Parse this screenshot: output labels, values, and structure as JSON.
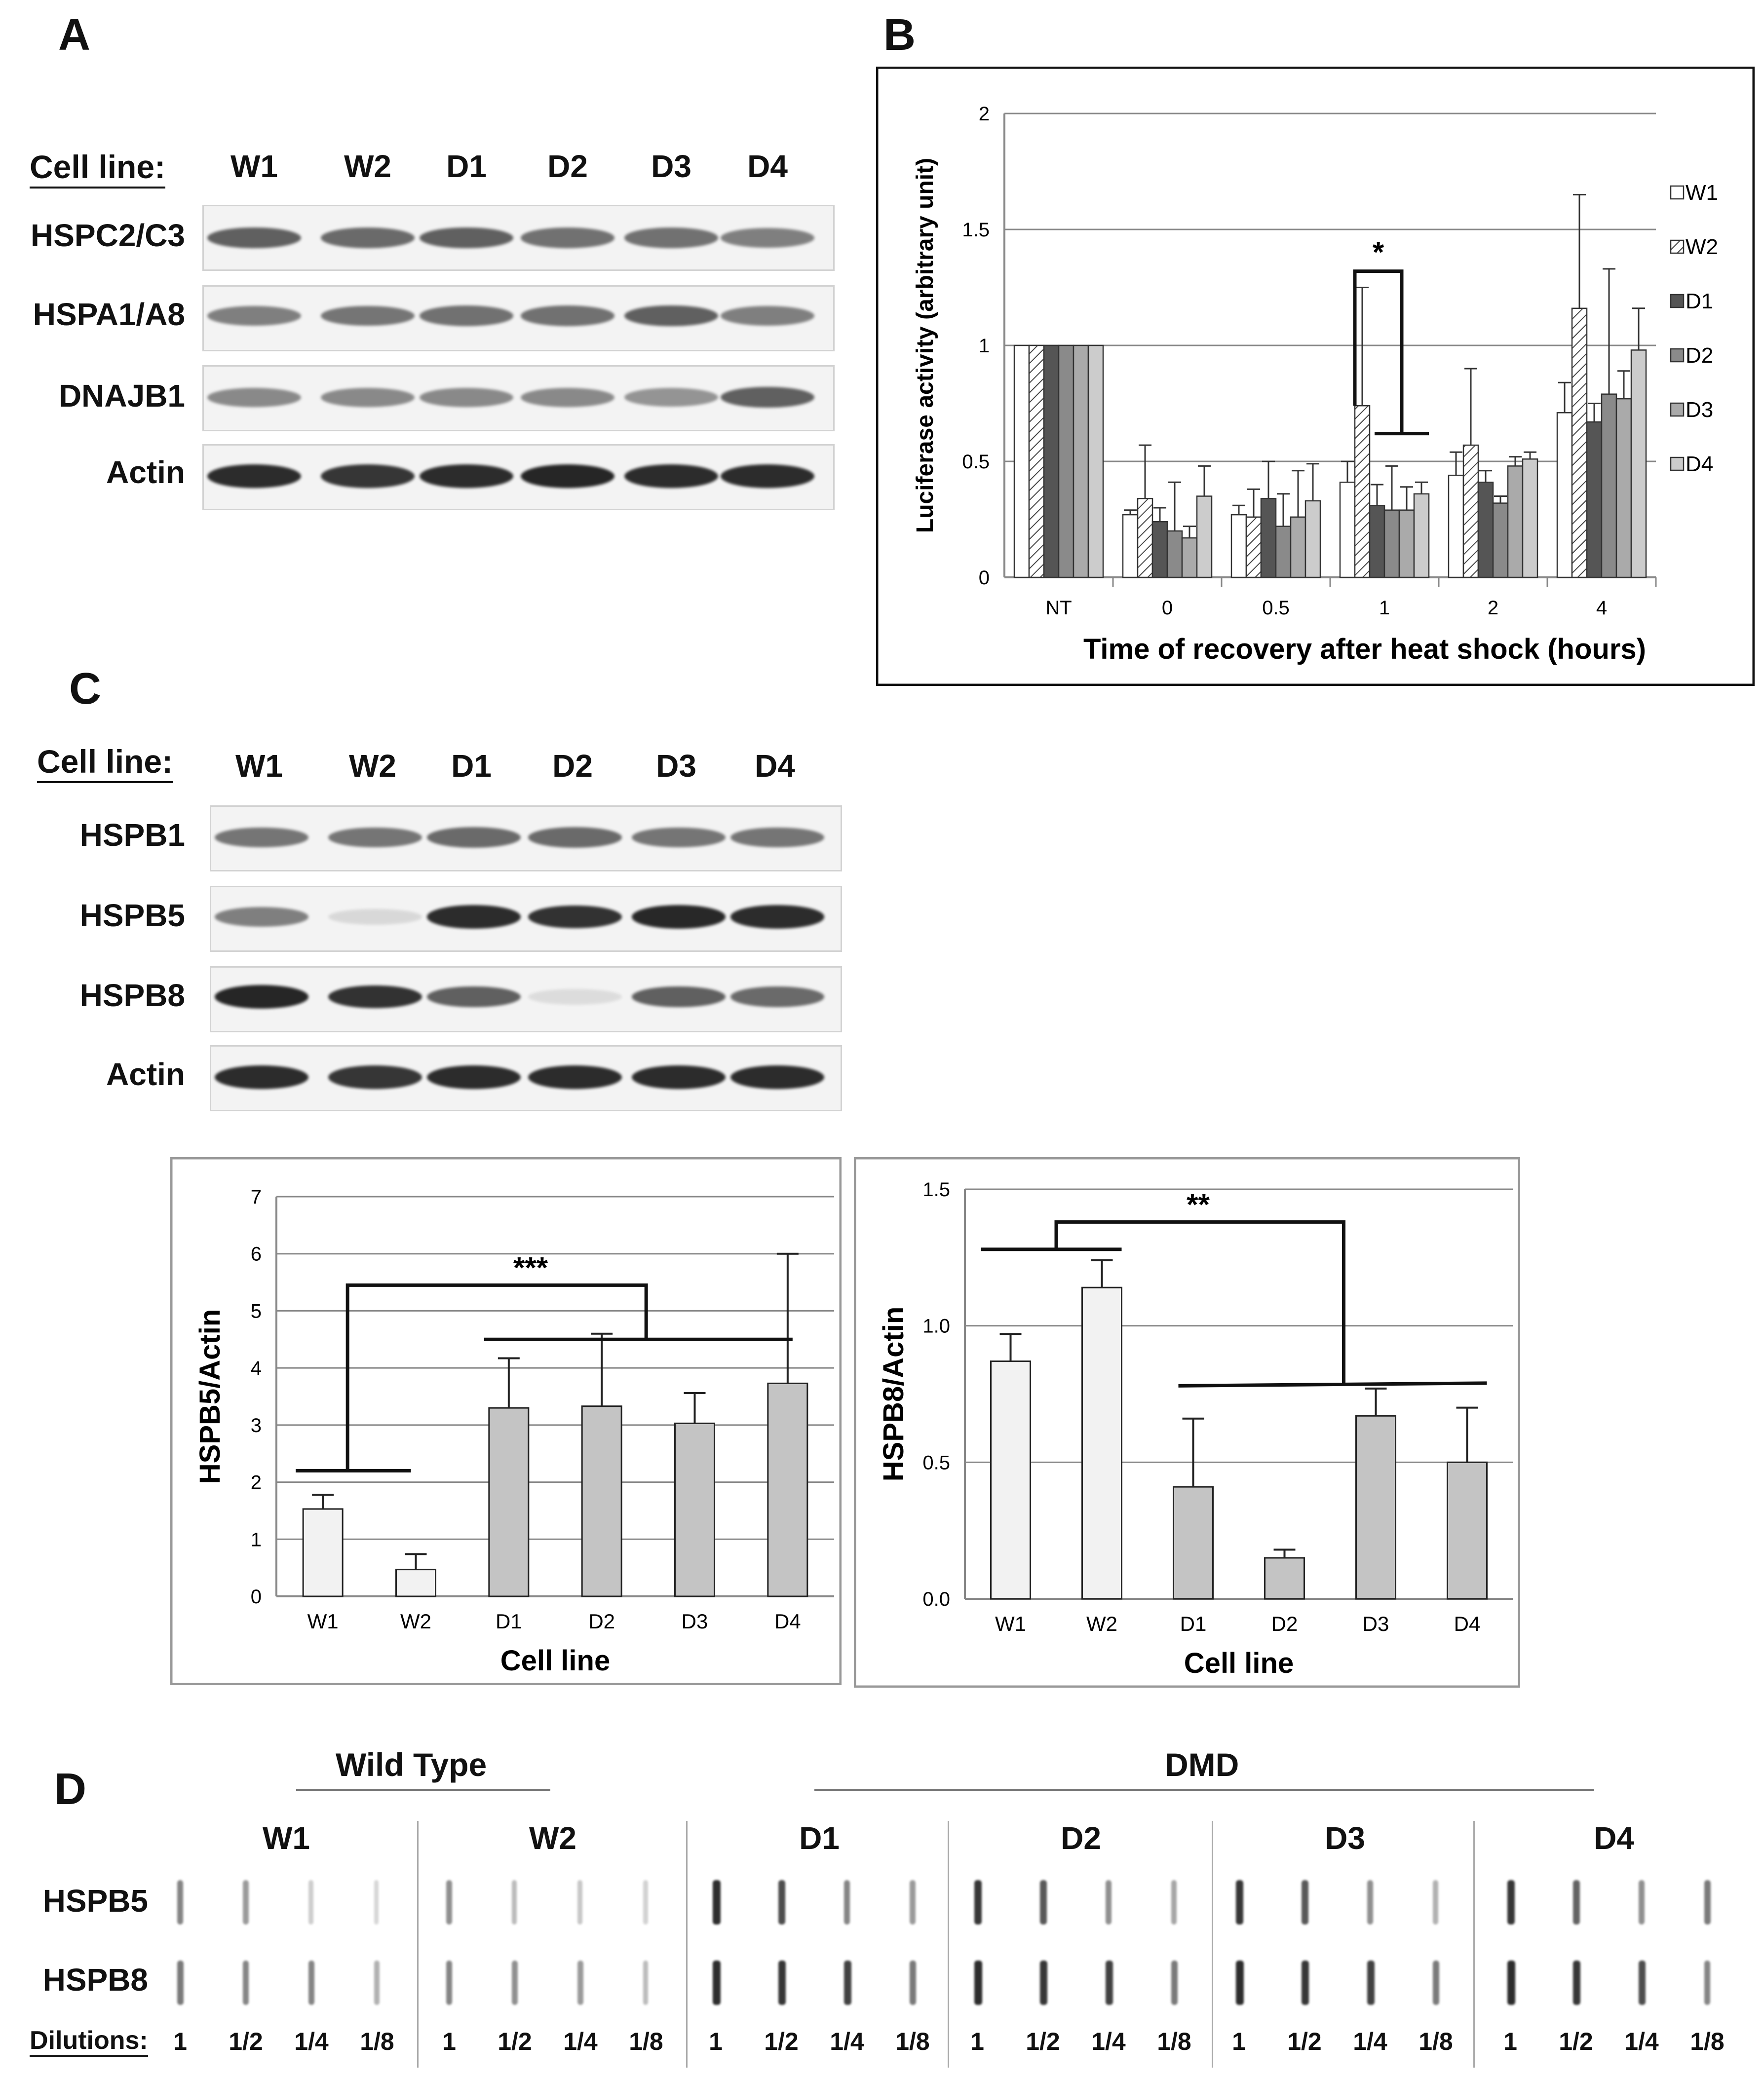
{
  "panels": {
    "a": "A",
    "b": "B",
    "c": "C",
    "d": "D"
  },
  "panel_a": {
    "cell_line_label": "Cell line:",
    "lanes": [
      "W1",
      "W2",
      "D1",
      "D2",
      "D3",
      "D4"
    ],
    "rows": [
      "HSPC2/C3",
      "HSPA1/A8",
      "DNAJB1",
      "Actin"
    ]
  },
  "panel_c_blot": {
    "cell_line_label": "Cell line:",
    "lanes": [
      "W1",
      "W2",
      "D1",
      "D2",
      "D3",
      "D4"
    ],
    "rows": [
      "HSPB1",
      "HSPB5",
      "HSPB8",
      "Actin"
    ],
    "band_intensity": {
      "HSPB1": [
        0.6,
        0.6,
        0.65,
        0.65,
        0.6,
        0.6
      ],
      "HSPB5": [
        0.55,
        0.12,
        0.95,
        0.92,
        0.97,
        0.95
      ],
      "HSPB8": [
        0.98,
        0.92,
        0.7,
        0.1,
        0.7,
        0.65
      ],
      "Actin": [
        0.95,
        0.9,
        0.95,
        0.95,
        0.95,
        0.95
      ]
    }
  },
  "panel_d": {
    "group_wt": "Wild Type",
    "group_dmd": "DMD",
    "lanes": [
      "W1",
      "W2",
      "D1",
      "D2",
      "D3",
      "D4"
    ],
    "rows": [
      "HSPB5",
      "HSPB8"
    ],
    "dilutions_label": "Dilutions:",
    "dilutions": [
      "1",
      "1/2",
      "1/4",
      "1/8"
    ]
  },
  "chart_data": [
    {
      "type": "bar",
      "title": "",
      "xlabel": "Time of recovery after heat shock (hours)",
      "ylabel": "Luciferase activity (arbitrary unit)",
      "ylim": [
        0,
        2
      ],
      "yticks": [
        "0",
        "0.5",
        "1",
        "1.5",
        "2"
      ],
      "categories": [
        "NT",
        "0",
        "0.5",
        "1",
        "2",
        "4"
      ],
      "series": [
        {
          "name": "W1",
          "fill": "#ffffff",
          "values": [
            1,
            0.27,
            0.27,
            0.41,
            0.44,
            0.71
          ],
          "errors": [
            0,
            0.02,
            0.04,
            0.09,
            0.1,
            0.13
          ]
        },
        {
          "name": "W2",
          "fill": "hatch",
          "values": [
            1,
            0.34,
            0.26,
            0.74,
            0.57,
            1.16
          ],
          "errors": [
            0,
            0.23,
            0.12,
            0.51,
            0.33,
            0.49
          ]
        },
        {
          "name": "D1",
          "fill": "#555555",
          "values": [
            1,
            0.24,
            0.34,
            0.31,
            0.41,
            0.67
          ],
          "errors": [
            0,
            0.06,
            0.16,
            0.09,
            0.05,
            0.08
          ]
        },
        {
          "name": "D2",
          "fill": "#8a8a8a",
          "values": [
            1,
            0.2,
            0.22,
            0.29,
            0.32,
            0.79
          ],
          "errors": [
            0,
            0.21,
            0.14,
            0.19,
            0.03,
            0.54
          ]
        },
        {
          "name": "D3",
          "fill": "#aaaaaa",
          "values": [
            1,
            0.17,
            0.26,
            0.29,
            0.48,
            0.77
          ],
          "errors": [
            0,
            0.05,
            0.2,
            0.1,
            0.04,
            0.12
          ]
        },
        {
          "name": "D4",
          "fill": "#cccccc",
          "values": [
            1,
            0.35,
            0.33,
            0.36,
            0.51,
            0.98
          ],
          "errors": [
            0,
            0.13,
            0.16,
            0.05,
            0.03,
            0.18
          ]
        }
      ],
      "annotation": "*",
      "legend": "right"
    },
    {
      "type": "bar",
      "xlabel": "Cell line",
      "ylabel": "HSPB5/Actin",
      "ylim": [
        0,
        7
      ],
      "yticks": [
        "0",
        "1",
        "2",
        "3",
        "4",
        "5",
        "6",
        "7"
      ],
      "categories": [
        "W1",
        "W2",
        "D1",
        "D2",
        "D3",
        "D4"
      ],
      "values": [
        1.53,
        0.47,
        3.3,
        3.33,
        3.03,
        3.73
      ],
      "errors": [
        0.25,
        0.27,
        0.87,
        1.27,
        0.53,
        2.27
      ],
      "fills": [
        "#f2f2f2",
        "#f2f2f2",
        "#c4c4c4",
        "#c4c4c4",
        "#c4c4c4",
        "#c4c4c4"
      ],
      "annotation": "***"
    },
    {
      "type": "bar",
      "xlabel": "Cell line",
      "ylabel": "HSPB8/Actin",
      "ylim": [
        0,
        1.5
      ],
      "yticks": [
        "0.0",
        "0.5",
        "1.0",
        "1.5"
      ],
      "categories": [
        "W1",
        "W2",
        "D1",
        "D2",
        "D3",
        "D4"
      ],
      "values": [
        0.87,
        1.14,
        0.41,
        0.15,
        0.67,
        0.5
      ],
      "errors": [
        0.1,
        0.1,
        0.25,
        0.03,
        0.1,
        0.2
      ],
      "fills": [
        "#f2f2f2",
        "#f2f2f2",
        "#c4c4c4",
        "#c4c4c4",
        "#c4c4c4",
        "#c4c4c4"
      ],
      "annotation": "**"
    }
  ]
}
